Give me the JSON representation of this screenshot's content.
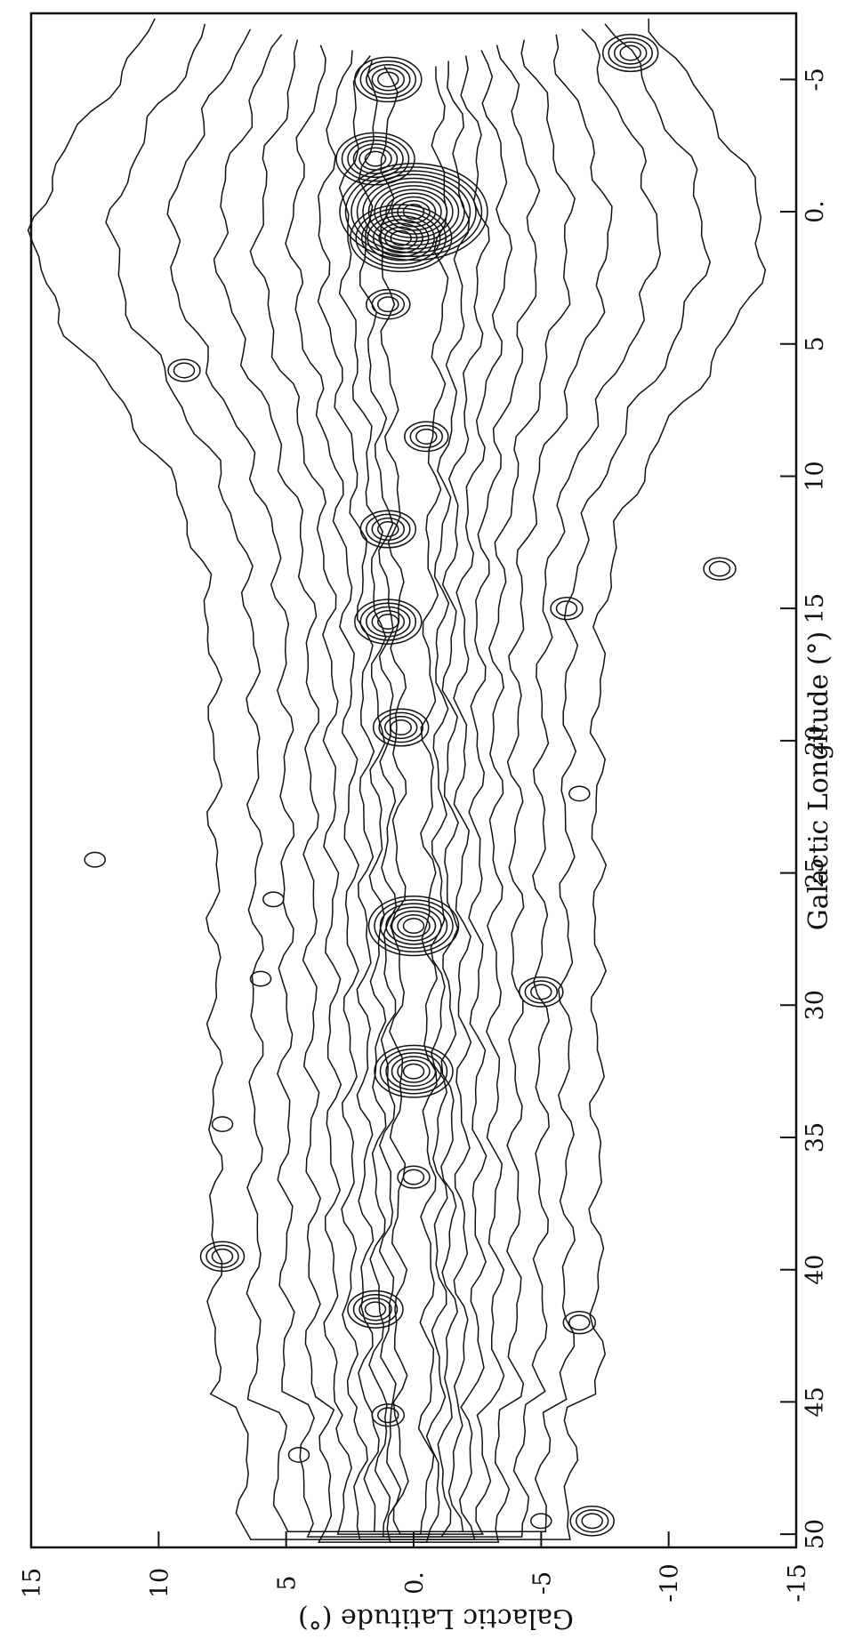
{
  "chart_data": {
    "type": "contour",
    "xlabel": "Galactic Longitude (°)",
    "ylabel": "Galactic Latitude (°)",
    "xlim": [
      50,
      -7
    ],
    "ylim": [
      -15,
      15
    ],
    "xticks": [
      50,
      45,
      40,
      35,
      30,
      25,
      20,
      15,
      10,
      5,
      0,
      -5
    ],
    "xtick_labels": [
      "50",
      "45",
      "40",
      "35",
      "30",
      "25",
      "20",
      "15",
      "10",
      "5",
      "0.",
      "-5"
    ],
    "yticks": [
      -15,
      -10,
      -5,
      0,
      5,
      10,
      15
    ],
    "ytick_labels": [
      "-15",
      "-10",
      "-5",
      "0.",
      "5",
      "10",
      "15"
    ],
    "grid": false,
    "plane_levels": [
      {
        "upper": 7.8,
        "lower": -7.2
      },
      {
        "upper": 6.2,
        "lower": -6.0
      },
      {
        "upper": 5.0,
        "lower": -5.0
      },
      {
        "upper": 4.0,
        "lower": -4.0
      },
      {
        "upper": 3.2,
        "lower": -3.2
      },
      {
        "upper": 2.5,
        "lower": -2.5
      },
      {
        "upper": 1.9,
        "lower": -1.9
      },
      {
        "upper": 1.4,
        "lower": -1.4
      },
      {
        "upper": 1.0,
        "lower": -1.0
      },
      {
        "upper": 0.6,
        "lower": -0.6
      }
    ],
    "peaks": [
      {
        "l": 0.0,
        "b": 0.0,
        "rings": 12
      },
      {
        "l": 1.0,
        "b": 0.5,
        "rings": 8
      },
      {
        "l": -2.0,
        "b": 1.5,
        "rings": 6
      },
      {
        "l": -5.0,
        "b": 1.0,
        "rings": 5
      },
      {
        "l": 3.5,
        "b": 1.0,
        "rings": 3
      },
      {
        "l": 8.5,
        "b": -0.5,
        "rings": 3
      },
      {
        "l": 12.0,
        "b": 1.0,
        "rings": 4
      },
      {
        "l": 15.5,
        "b": 1.0,
        "rings": 5
      },
      {
        "l": 19.5,
        "b": 0.5,
        "rings": 4
      },
      {
        "l": 27.0,
        "b": 0.0,
        "rings": 7
      },
      {
        "l": 32.5,
        "b": 0.0,
        "rings": 6
      },
      {
        "l": 36.5,
        "b": 0.0,
        "rings": 2
      },
      {
        "l": 41.5,
        "b": 1.5,
        "rings": 4
      },
      {
        "l": 45.5,
        "b": 1.0,
        "rings": 2
      },
      {
        "l": 49.5,
        "b": -5.0,
        "rings": 1
      },
      {
        "l": 49.5,
        "b": -7.0,
        "rings": 3
      },
      {
        "l": 42.0,
        "b": -6.5,
        "rings": 2
      },
      {
        "l": 29.5,
        "b": -5.0,
        "rings": 3
      },
      {
        "l": 15.0,
        "b": -6.0,
        "rings": 2
      },
      {
        "l": 13.5,
        "b": -12.0,
        "rings": 2
      },
      {
        "l": -6.0,
        "b": -8.5,
        "rings": 4
      },
      {
        "l": 39.5,
        "b": 7.5,
        "rings": 3
      },
      {
        "l": 34.5,
        "b": 7.5,
        "rings": 1
      },
      {
        "l": 29.0,
        "b": 6.0,
        "rings": 1
      },
      {
        "l": 26.0,
        "b": 5.5,
        "rings": 1
      },
      {
        "l": 6.0,
        "b": 9.0,
        "rings": 2
      },
      {
        "l": 24.5,
        "b": 12.5,
        "rings": 1
      },
      {
        "l": 47.0,
        "b": 4.5,
        "rings": 1
      },
      {
        "l": 22.0,
        "b": -6.5,
        "rings": 1
      }
    ]
  }
}
